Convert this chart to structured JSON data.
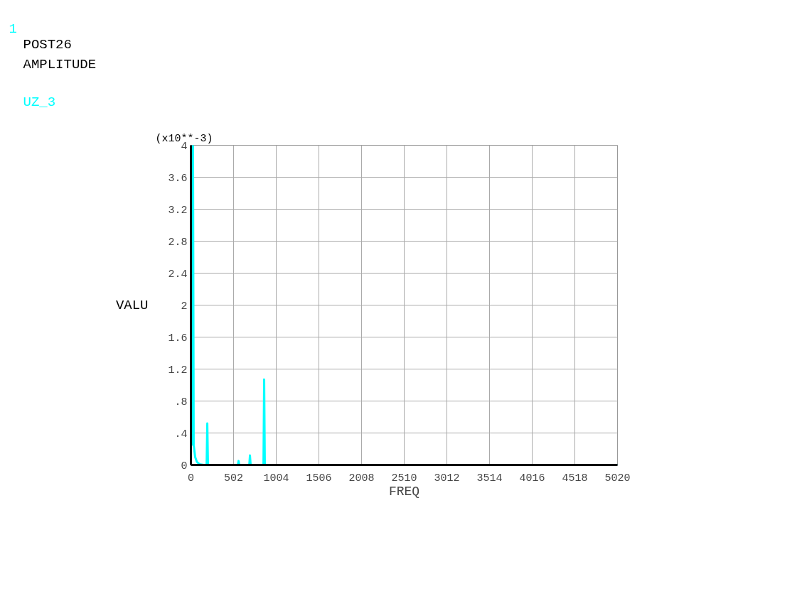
{
  "chart_data": {
    "type": "line",
    "title": "POST26",
    "subtitle": "AMPLITUDE",
    "xlabel": "FREQ",
    "ylabel": "VALU",
    "annotations": [
      "1",
      "(x10**-3)"
    ],
    "series": [
      {
        "name": "UZ_3",
        "color": "#00ffff",
        "x": [
          0,
          8,
          17,
          25,
          33,
          50,
          70,
          100,
          150,
          185,
          193,
          201,
          553,
          561,
          569,
          687,
          695,
          703,
          854,
          862,
          870,
          5020
        ],
        "values": [
          0.38,
          0.25,
          4.0,
          4.0,
          0.25,
          0.1,
          0.04,
          0.01,
          0,
          0,
          0.52,
          0,
          0,
          0.05,
          0,
          0,
          0.12,
          0,
          0,
          1.07,
          0,
          0
        ]
      }
    ],
    "xlim": [
      0,
      5020
    ],
    "xticks": [
      0,
      502,
      1004,
      1506,
      2008,
      2510,
      3012,
      3514,
      4016,
      4518,
      5020
    ],
    "ylim": [
      0,
      4
    ],
    "yticks": [
      {
        "value": 0,
        "label": "0"
      },
      {
        "value": 0.4,
        "label": ".4"
      },
      {
        "value": 0.8,
        "label": ".8"
      },
      {
        "value": 1.2,
        "label": "1.2"
      },
      {
        "value": 1.6,
        "label": "1.6"
      },
      {
        "value": 2,
        "label": "2"
      },
      {
        "value": 2.4,
        "label": "2.4"
      },
      {
        "value": 2.8,
        "label": "2.8"
      },
      {
        "value": 3.2,
        "label": "3.2"
      },
      {
        "value": 3.6,
        "label": "3.6"
      },
      {
        "value": 4,
        "label": "4"
      }
    ],
    "grid": true,
    "marker": "none",
    "line_style": "solid"
  }
}
